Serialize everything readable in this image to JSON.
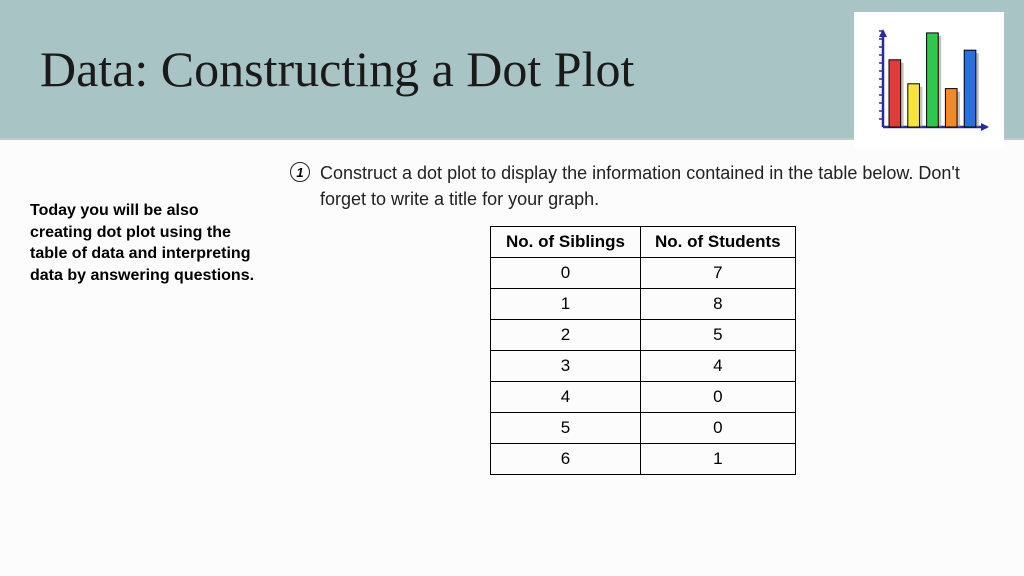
{
  "header": {
    "title": "Data: Constructing a Dot Plot",
    "background_color": "#a8c4c5"
  },
  "icon_chart": {
    "type": "bar",
    "axis_color": "#2a2aa0",
    "tick_count": 12,
    "background": "#ffffff",
    "bars": [
      {
        "label": "red",
        "height_pct": 70,
        "fill": "#e23b3b",
        "shadow": "#888"
      },
      {
        "label": "yellow",
        "height_pct": 45,
        "fill": "#f7e33d",
        "shadow": "#888"
      },
      {
        "label": "green",
        "height_pct": 98,
        "fill": "#2ec94b",
        "shadow": "#888"
      },
      {
        "label": "orange",
        "height_pct": 40,
        "fill": "#f08a2b",
        "shadow": "#888"
      },
      {
        "label": "blue",
        "height_pct": 80,
        "fill": "#2b6fe2",
        "shadow": "#888"
      }
    ]
  },
  "sidebar": {
    "intro_text": "Today you will be also creating dot plot using the table of data and interpreting data by answering questions."
  },
  "question": {
    "number": "1",
    "text": "Construct a dot plot to display the information contained in the table below. Don't forget to write a title for your graph."
  },
  "table": {
    "type": "table",
    "border_color": "#000000",
    "header_font_weight": "bold",
    "cell_fontsize": 17,
    "columns": [
      "No. of Siblings",
      "No. of Students"
    ],
    "rows": [
      [
        "0",
        "7"
      ],
      [
        "1",
        "8"
      ],
      [
        "2",
        "5"
      ],
      [
        "3",
        "4"
      ],
      [
        "4",
        "0"
      ],
      [
        "5",
        "0"
      ],
      [
        "6",
        "1"
      ]
    ]
  }
}
